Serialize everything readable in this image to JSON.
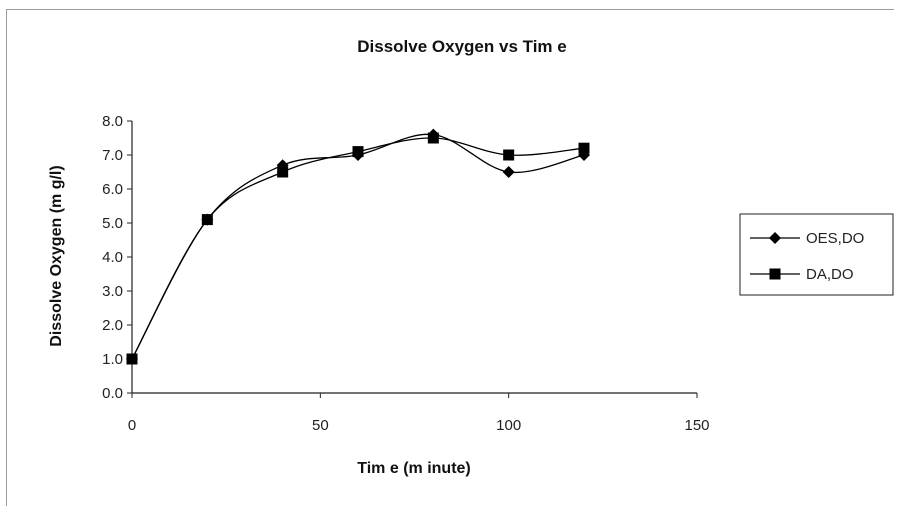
{
  "chart_data": {
    "type": "line",
    "title": "Dissolve Oxygen vs Tim e",
    "xlabel": "Tim e (m inute)",
    "ylabel": "Dissolve Oxygen (m g/l)",
    "xlim": [
      0,
      150
    ],
    "ylim": [
      0,
      8
    ],
    "xticks": [
      0,
      50,
      100,
      150
    ],
    "xtick_labels": [
      "0",
      "50",
      "100",
      "150"
    ],
    "yticks": [
      0,
      1,
      2,
      3,
      4,
      5,
      6,
      7,
      8
    ],
    "ytick_labels": [
      "0.0",
      "1.0",
      "2.0",
      "3.0",
      "4.0",
      "5.0",
      "6.0",
      "7.0",
      "8.0"
    ],
    "grid": false,
    "legend_position": "right",
    "series": [
      {
        "name": "OES,DO",
        "marker": "diamond",
        "color": "#000000",
        "x": [
          0,
          20,
          40,
          60,
          80,
          100,
          120
        ],
        "y": [
          1.0,
          5.1,
          6.7,
          7.0,
          7.6,
          6.5,
          7.0
        ]
      },
      {
        "name": "DA,DO",
        "marker": "square",
        "color": "#000000",
        "x": [
          0,
          20,
          40,
          60,
          80,
          100,
          120
        ],
        "y": [
          1.0,
          5.1,
          6.5,
          7.1,
          7.5,
          7.0,
          7.2
        ]
      }
    ]
  }
}
